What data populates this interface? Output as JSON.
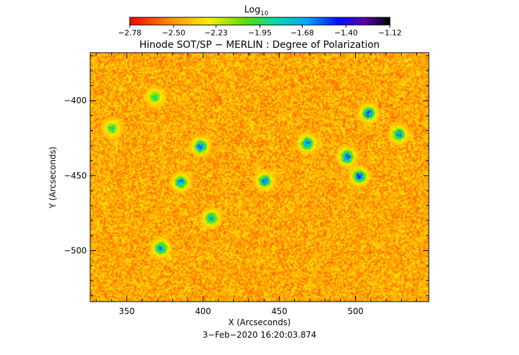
{
  "chart_data": {
    "type": "heatmap",
    "title": "Hinode SOT/SP − MERLIN : Degree of Polarization",
    "xlabel": "X (Arcseconds)",
    "ylabel": "Y (Arcseconds)",
    "date_label": "3−Feb−2020 16:20:03.874",
    "xlim": [
      326,
      548
    ],
    "ylim": [
      -534,
      -368
    ],
    "x_ticks": [
      350,
      400,
      450,
      500
    ],
    "x_tick_labels": [
      "350",
      "400",
      "450",
      "500"
    ],
    "y_ticks": [
      -400,
      -450,
      -500
    ],
    "y_tick_labels": [
      "−400",
      "−450",
      "−500"
    ],
    "colorbar": {
      "title": "Log",
      "title_subscript": "10",
      "range": [
        -2.78,
        -1.12
      ],
      "ticks": [
        -2.78,
        -2.5,
        -2.23,
        -1.95,
        -1.68,
        -1.4,
        -1.12
      ],
      "tick_labels": [
        "−2.78",
        "−2.50",
        "−2.23",
        "−1.95",
        "−1.68",
        "−1.40",
        "−1.12"
      ]
    },
    "background_level": -2.45,
    "features": [
      {
        "x": 398,
        "y": -430,
        "level": -1.45
      },
      {
        "x": 385,
        "y": -454,
        "level": -1.55
      },
      {
        "x": 372,
        "y": -498,
        "level": -1.5
      },
      {
        "x": 405,
        "y": -478,
        "level": -1.6
      },
      {
        "x": 440,
        "y": -453,
        "level": -1.5
      },
      {
        "x": 468,
        "y": -428,
        "level": -1.45
      },
      {
        "x": 502,
        "y": -450,
        "level": -1.35
      },
      {
        "x": 494,
        "y": -437,
        "level": -1.4
      },
      {
        "x": 508,
        "y": -408,
        "level": -1.4
      },
      {
        "x": 528,
        "y": -422,
        "level": -1.55
      },
      {
        "x": 368,
        "y": -397,
        "level": -1.85
      },
      {
        "x": 340,
        "y": -418,
        "level": -1.85
      }
    ]
  }
}
